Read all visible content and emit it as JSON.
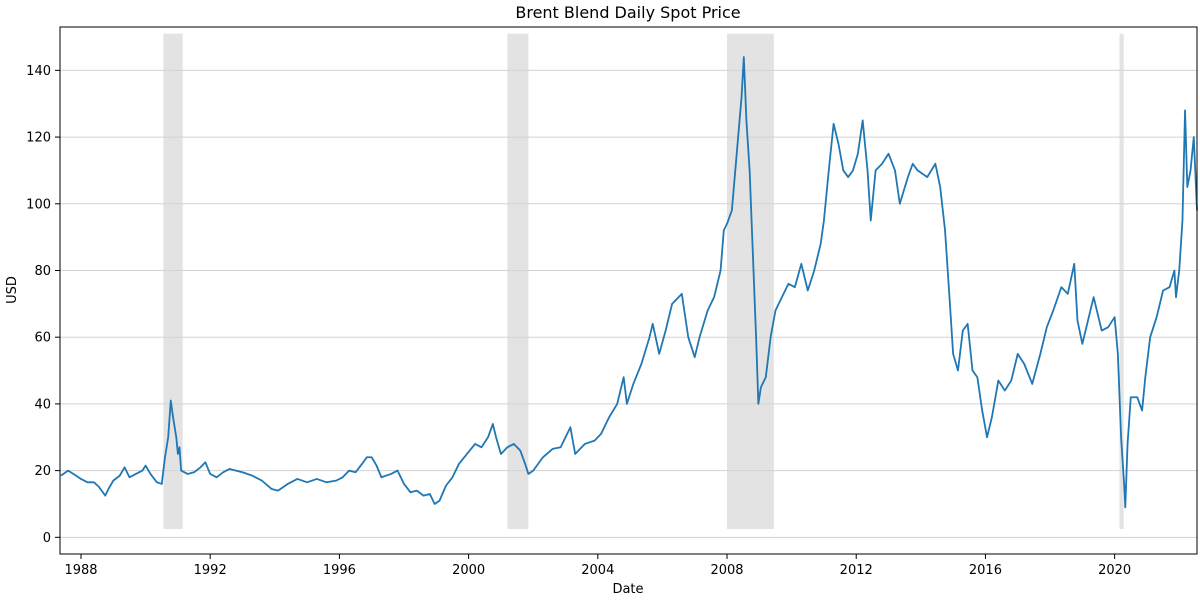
{
  "chart_data": {
    "type": "line",
    "title": "Brent Blend Daily Spot Price",
    "xlabel": "Date",
    "ylabel": "USD",
    "xlim": [
      1987.35,
      2022.55
    ],
    "ylim": [
      -5,
      153
    ],
    "grid": "horizontal",
    "line_color": "#1f77b4",
    "band_color": "#d9d9d9",
    "x_ticks": [
      1988,
      1992,
      1996,
      2000,
      2004,
      2008,
      2012,
      2016,
      2020
    ],
    "x_tick_labels": [
      "1988",
      "1992",
      "1996",
      "2000",
      "2004",
      "2008",
      "2012",
      "2016",
      "2020"
    ],
    "y_ticks": [
      0,
      20,
      40,
      60,
      80,
      100,
      120,
      140
    ],
    "y_tick_labels": [
      "0",
      "20",
      "40",
      "60",
      "80",
      "100",
      "120",
      "140"
    ],
    "shaded_periods": [
      {
        "name": "recession-1990",
        "start": 1990.55,
        "end": 1991.15,
        "ymin": 2.5,
        "ymax": 151
      },
      {
        "name": "recession-2001",
        "start": 2001.2,
        "end": 2001.85,
        "ymin": 2.5,
        "ymax": 151
      },
      {
        "name": "recession-2008",
        "start": 2008.0,
        "end": 2009.45,
        "ymin": 2.5,
        "ymax": 151
      },
      {
        "name": "recession-2020",
        "start": 2020.15,
        "end": 2020.28,
        "ymin": 2.5,
        "ymax": 151
      }
    ],
    "series": [
      {
        "name": "Brent",
        "points": [
          [
            1987.38,
            18.5
          ],
          [
            1987.6,
            20
          ],
          [
            1987.8,
            18.8
          ],
          [
            1988.0,
            17.5
          ],
          [
            1988.2,
            16.5
          ],
          [
            1988.4,
            16.5
          ],
          [
            1988.55,
            15.2
          ],
          [
            1988.75,
            12.5
          ],
          [
            1988.85,
            14.5
          ],
          [
            1989.0,
            17
          ],
          [
            1989.2,
            18.5
          ],
          [
            1989.35,
            21
          ],
          [
            1989.5,
            18
          ],
          [
            1989.7,
            19
          ],
          [
            1989.9,
            20
          ],
          [
            1990.0,
            21.5
          ],
          [
            1990.15,
            19
          ],
          [
            1990.35,
            16.5
          ],
          [
            1990.5,
            16
          ],
          [
            1990.6,
            24
          ],
          [
            1990.7,
            30
          ],
          [
            1990.78,
            41
          ],
          [
            1990.85,
            36
          ],
          [
            1990.95,
            30
          ],
          [
            1991.0,
            25
          ],
          [
            1991.05,
            27
          ],
          [
            1991.1,
            20
          ],
          [
            1991.3,
            19
          ],
          [
            1991.5,
            19.5
          ],
          [
            1991.7,
            21
          ],
          [
            1991.85,
            22.5
          ],
          [
            1992.0,
            19
          ],
          [
            1992.2,
            18
          ],
          [
            1992.4,
            19.5
          ],
          [
            1992.6,
            20.5
          ],
          [
            1992.8,
            20
          ],
          [
            1993.0,
            19.5
          ],
          [
            1993.3,
            18.5
          ],
          [
            1993.6,
            17
          ],
          [
            1993.9,
            14.5
          ],
          [
            1994.1,
            14
          ],
          [
            1994.4,
            16
          ],
          [
            1994.7,
            17.5
          ],
          [
            1995.0,
            16.5
          ],
          [
            1995.3,
            17.5
          ],
          [
            1995.6,
            16.5
          ],
          [
            1995.9,
            17
          ],
          [
            1996.1,
            18
          ],
          [
            1996.3,
            20
          ],
          [
            1996.5,
            19.5
          ],
          [
            1996.7,
            22
          ],
          [
            1996.85,
            24
          ],
          [
            1997.0,
            24
          ],
          [
            1997.15,
            21.5
          ],
          [
            1997.3,
            18
          ],
          [
            1997.6,
            19
          ],
          [
            1997.8,
            20
          ],
          [
            1998.0,
            16
          ],
          [
            1998.2,
            13.5
          ],
          [
            1998.4,
            14
          ],
          [
            1998.6,
            12.5
          ],
          [
            1998.8,
            13
          ],
          [
            1998.95,
            10
          ],
          [
            1999.1,
            11
          ],
          [
            1999.3,
            15.5
          ],
          [
            1999.5,
            18
          ],
          [
            1999.7,
            22
          ],
          [
            1999.95,
            25
          ],
          [
            2000.2,
            28
          ],
          [
            2000.4,
            27
          ],
          [
            2000.6,
            30
          ],
          [
            2000.75,
            34
          ],
          [
            2000.85,
            30
          ],
          [
            2001.0,
            25
          ],
          [
            2001.2,
            27
          ],
          [
            2001.4,
            28
          ],
          [
            2001.6,
            26
          ],
          [
            2001.75,
            22
          ],
          [
            2001.85,
            19
          ],
          [
            2002.0,
            20
          ],
          [
            2002.3,
            24
          ],
          [
            2002.6,
            26.5
          ],
          [
            2002.85,
            27
          ],
          [
            2003.0,
            30
          ],
          [
            2003.15,
            33
          ],
          [
            2003.3,
            25
          ],
          [
            2003.6,
            28
          ],
          [
            2003.9,
            29
          ],
          [
            2004.1,
            31
          ],
          [
            2004.35,
            36
          ],
          [
            2004.6,
            40
          ],
          [
            2004.8,
            48
          ],
          [
            2004.9,
            40
          ],
          [
            2005.1,
            46
          ],
          [
            2005.35,
            52
          ],
          [
            2005.6,
            60
          ],
          [
            2005.7,
            64
          ],
          [
            2005.9,
            55
          ],
          [
            2006.1,
            62
          ],
          [
            2006.3,
            70
          ],
          [
            2006.6,
            73
          ],
          [
            2006.8,
            60
          ],
          [
            2007.0,
            54
          ],
          [
            2007.15,
            60
          ],
          [
            2007.4,
            68
          ],
          [
            2007.6,
            72
          ],
          [
            2007.8,
            80
          ],
          [
            2007.9,
            92
          ],
          [
            2008.0,
            94
          ],
          [
            2008.15,
            98
          ],
          [
            2008.3,
            115
          ],
          [
            2008.45,
            132
          ],
          [
            2008.52,
            144
          ],
          [
            2008.6,
            125
          ],
          [
            2008.7,
            110
          ],
          [
            2008.8,
            85
          ],
          [
            2008.9,
            60
          ],
          [
            2008.97,
            40
          ],
          [
            2009.05,
            45
          ],
          [
            2009.2,
            48
          ],
          [
            2009.35,
            60
          ],
          [
            2009.5,
            68
          ],
          [
            2009.7,
            72
          ],
          [
            2009.9,
            76
          ],
          [
            2010.1,
            75
          ],
          [
            2010.3,
            82
          ],
          [
            2010.5,
            74
          ],
          [
            2010.7,
            80
          ],
          [
            2010.9,
            88
          ],
          [
            2011.0,
            95
          ],
          [
            2011.15,
            110
          ],
          [
            2011.3,
            124
          ],
          [
            2011.45,
            118
          ],
          [
            2011.6,
            110
          ],
          [
            2011.75,
            108
          ],
          [
            2011.9,
            110
          ],
          [
            2012.05,
            115
          ],
          [
            2012.2,
            125
          ],
          [
            2012.35,
            110
          ],
          [
            2012.45,
            95
          ],
          [
            2012.6,
            110
          ],
          [
            2012.8,
            112
          ],
          [
            2013.0,
            115
          ],
          [
            2013.2,
            110
          ],
          [
            2013.35,
            100
          ],
          [
            2013.6,
            108
          ],
          [
            2013.75,
            112
          ],
          [
            2013.9,
            110
          ],
          [
            2014.2,
            108
          ],
          [
            2014.45,
            112
          ],
          [
            2014.6,
            105
          ],
          [
            2014.75,
            92
          ],
          [
            2014.9,
            70
          ],
          [
            2015.0,
            55
          ],
          [
            2015.15,
            50
          ],
          [
            2015.3,
            62
          ],
          [
            2015.45,
            64
          ],
          [
            2015.6,
            50
          ],
          [
            2015.75,
            48
          ],
          [
            2015.9,
            38
          ],
          [
            2016.05,
            30
          ],
          [
            2016.2,
            36
          ],
          [
            2016.4,
            47
          ],
          [
            2016.6,
            44
          ],
          [
            2016.8,
            47
          ],
          [
            2017.0,
            55
          ],
          [
            2017.2,
            52
          ],
          [
            2017.45,
            46
          ],
          [
            2017.7,
            55
          ],
          [
            2017.9,
            63
          ],
          [
            2018.1,
            68
          ],
          [
            2018.35,
            75
          ],
          [
            2018.55,
            73
          ],
          [
            2018.75,
            82
          ],
          [
            2018.85,
            65
          ],
          [
            2019.0,
            58
          ],
          [
            2019.2,
            66
          ],
          [
            2019.35,
            72
          ],
          [
            2019.6,
            62
          ],
          [
            2019.8,
            63
          ],
          [
            2020.0,
            66
          ],
          [
            2020.1,
            55
          ],
          [
            2020.2,
            30
          ],
          [
            2020.3,
            15
          ],
          [
            2020.33,
            9
          ],
          [
            2020.4,
            28
          ],
          [
            2020.5,
            42
          ],
          [
            2020.7,
            42
          ],
          [
            2020.85,
            38
          ],
          [
            2020.95,
            48
          ],
          [
            2021.1,
            60
          ],
          [
            2021.3,
            66
          ],
          [
            2021.5,
            74
          ],
          [
            2021.7,
            75
          ],
          [
            2021.85,
            80
          ],
          [
            2021.9,
            72
          ],
          [
            2022.0,
            80
          ],
          [
            2022.1,
            95
          ],
          [
            2022.18,
            128
          ],
          [
            2022.25,
            105
          ],
          [
            2022.35,
            110
          ],
          [
            2022.45,
            120
          ],
          [
            2022.55,
            98
          ]
        ]
      }
    ]
  }
}
